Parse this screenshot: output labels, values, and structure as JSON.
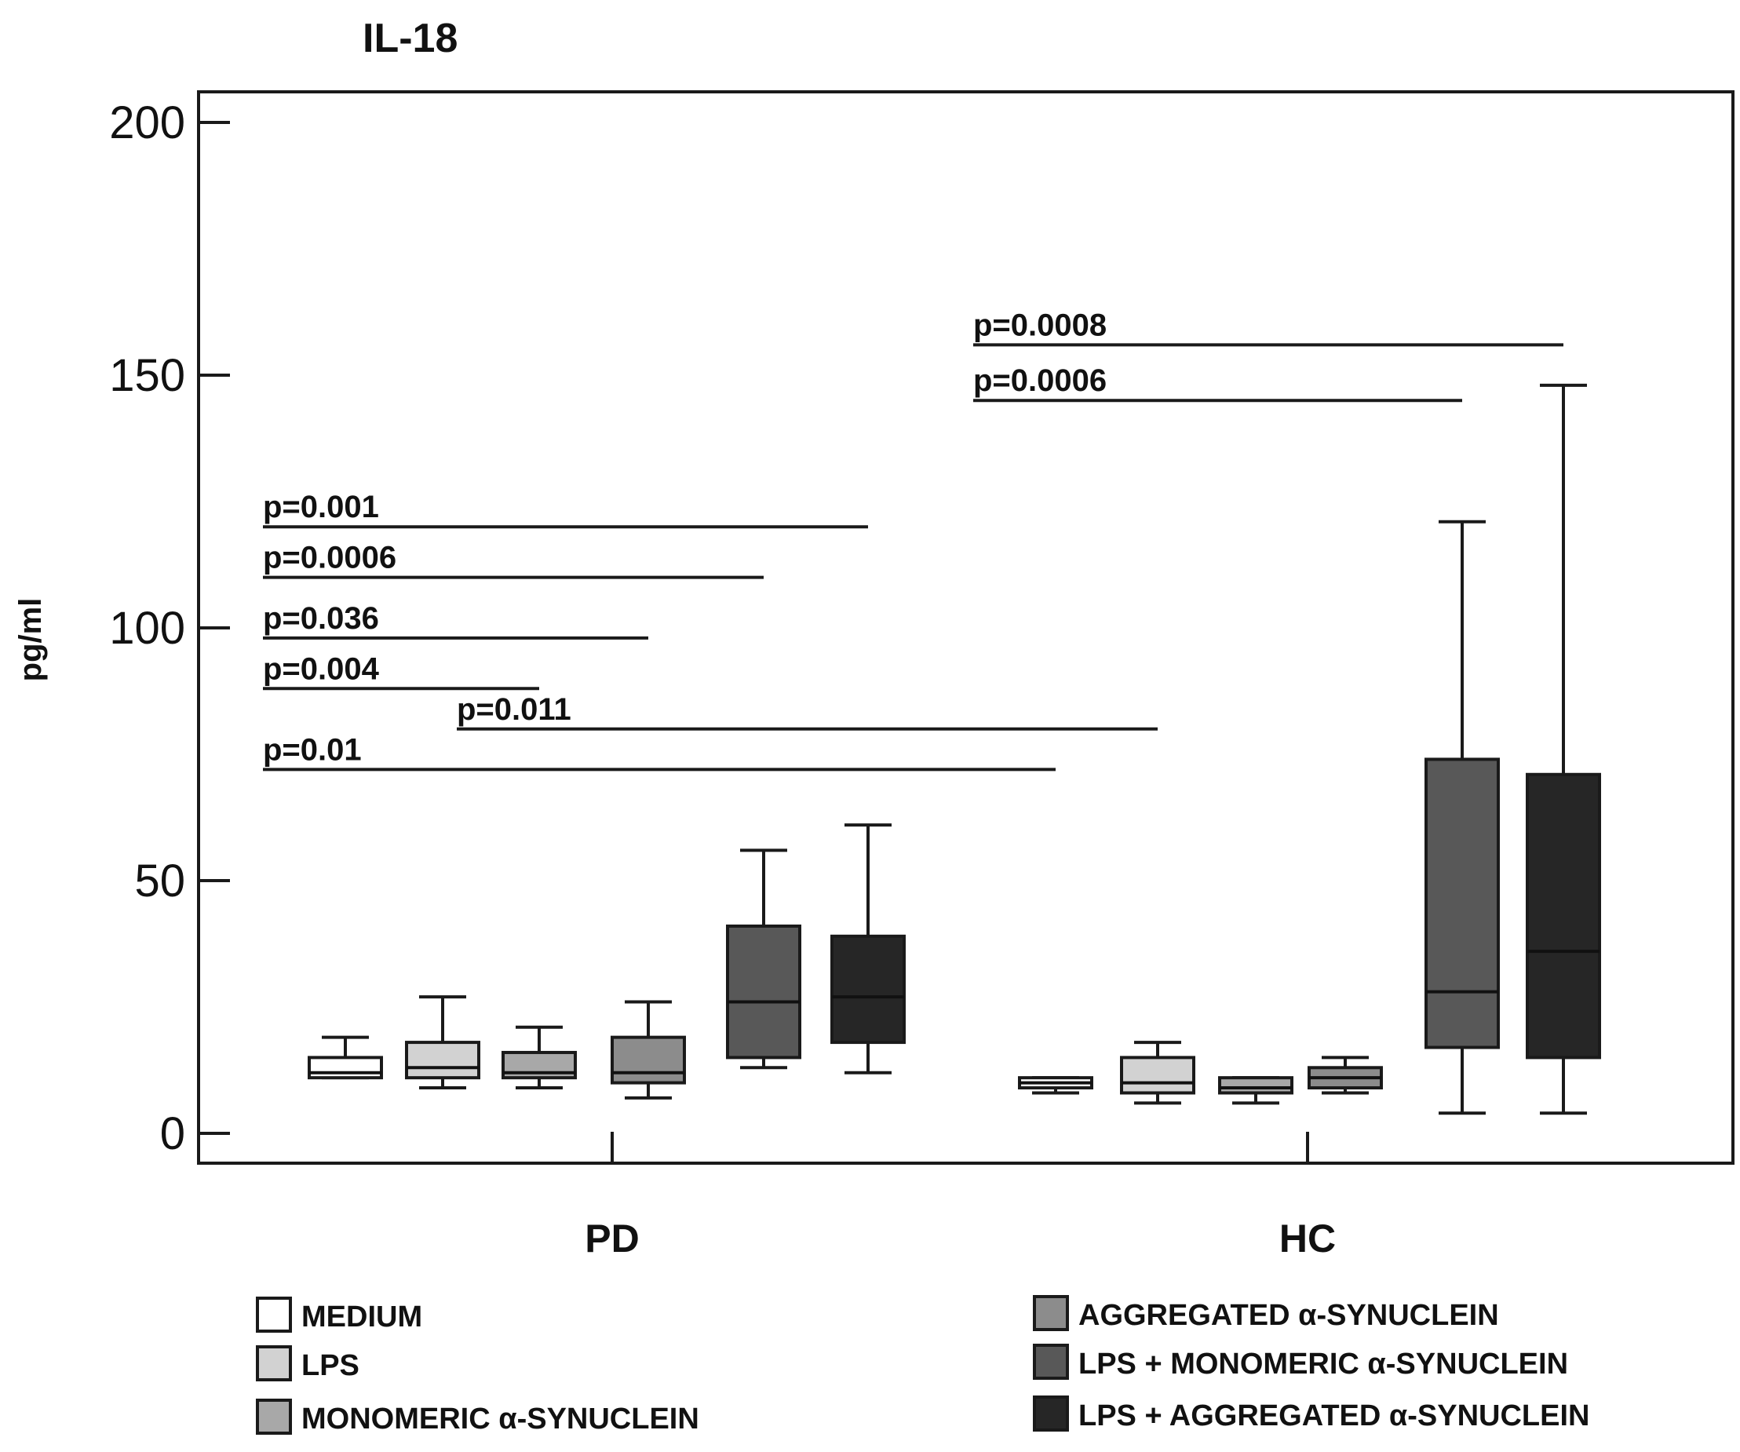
{
  "chart_data": {
    "type": "box",
    "title": "IL-18",
    "ylabel": "pg/ml",
    "ylim": [
      0,
      200
    ],
    "yticks": [
      0,
      50,
      100,
      150,
      200
    ],
    "groups": [
      "PD",
      "HC"
    ],
    "legend": {
      "placement": "bottom",
      "entries": [
        {
          "label": "MEDIUM",
          "color": "#ffffff"
        },
        {
          "label": "LPS",
          "color": "#d2d2d2"
        },
        {
          "label": "MONOMERIC α-SYNUCLEIN",
          "color": "#a8a8a8"
        },
        {
          "label": "AGGREGATED α-SYNUCLEIN",
          "color": "#8c8c8c"
        },
        {
          "label": "LPS + MONOMERIC α-SYNUCLEIN",
          "color": "#585858"
        },
        {
          "label": "LPS + AGGREGATED α-SYNUCLEIN",
          "color": "#262626"
        }
      ]
    },
    "boxes": [
      {
        "group": "PD",
        "condition": "MEDIUM",
        "min": 11,
        "q1": 11,
        "median": 12,
        "q3": 15,
        "max": 19
      },
      {
        "group": "PD",
        "condition": "LPS",
        "min": 9,
        "q1": 11,
        "median": 13,
        "q3": 18,
        "max": 27
      },
      {
        "group": "PD",
        "condition": "MONOMERIC α-SYNUCLEIN",
        "min": 9,
        "q1": 11,
        "median": 12,
        "q3": 16,
        "max": 21
      },
      {
        "group": "PD",
        "condition": "AGGREGATED α-SYNUCLEIN",
        "min": 7,
        "q1": 10,
        "median": 12,
        "q3": 19,
        "max": 26
      },
      {
        "group": "PD",
        "condition": "LPS + MONOMERIC α-SYNUCLEIN",
        "min": 13,
        "q1": 15,
        "median": 26,
        "q3": 41,
        "max": 56
      },
      {
        "group": "PD",
        "condition": "LPS + AGGREGATED α-SYNUCLEIN",
        "min": 12,
        "q1": 18,
        "median": 27,
        "q3": 39,
        "max": 61
      },
      {
        "group": "HC",
        "condition": "MEDIUM",
        "min": 8,
        "q1": 9,
        "median": 10,
        "q3": 11,
        "max": 11
      },
      {
        "group": "HC",
        "condition": "LPS",
        "min": 6,
        "q1": 8,
        "median": 10,
        "q3": 15,
        "max": 18
      },
      {
        "group": "HC",
        "condition": "MONOMERIC α-SYNUCLEIN",
        "min": 6,
        "q1": 8,
        "median": 9,
        "q3": 11,
        "max": 11
      },
      {
        "group": "HC",
        "condition": "AGGREGATED α-SYNUCLEIN",
        "min": 8,
        "q1": 9,
        "median": 11,
        "q3": 13,
        "max": 15
      },
      {
        "group": "HC",
        "condition": "LPS + MONOMERIC α-SYNUCLEIN",
        "min": 4,
        "q1": 17,
        "median": 28,
        "q3": 74,
        "max": 121
      },
      {
        "group": "HC",
        "condition": "LPS + AGGREGATED α-SYNUCLEIN",
        "min": 4,
        "q1": 15,
        "median": 36,
        "q3": 71,
        "max": 148
      }
    ],
    "annotations": [
      {
        "text": "p=0.001",
        "y": 120,
        "from_box": 0,
        "to_box": 5
      },
      {
        "text": "p=0.0006",
        "y": 110,
        "from_box": 0,
        "to_box": 4
      },
      {
        "text": "p=0.036",
        "y": 98,
        "from_box": 0,
        "to_box": 3
      },
      {
        "text": "p=0.004",
        "y": 88,
        "from_box": 0,
        "to_box": 2
      },
      {
        "text": "p=0.011",
        "y": 80,
        "from_box": 2,
        "to_box": 7
      },
      {
        "text": "p=0.01",
        "y": 72,
        "from_box": 0,
        "to_box": 6
      },
      {
        "text": "p=0.0008",
        "y": 156,
        "from_box": 6,
        "to_box": 11
      },
      {
        "text": "p=0.0006",
        "y": 145,
        "from_box": 6,
        "to_box": 10
      }
    ]
  }
}
